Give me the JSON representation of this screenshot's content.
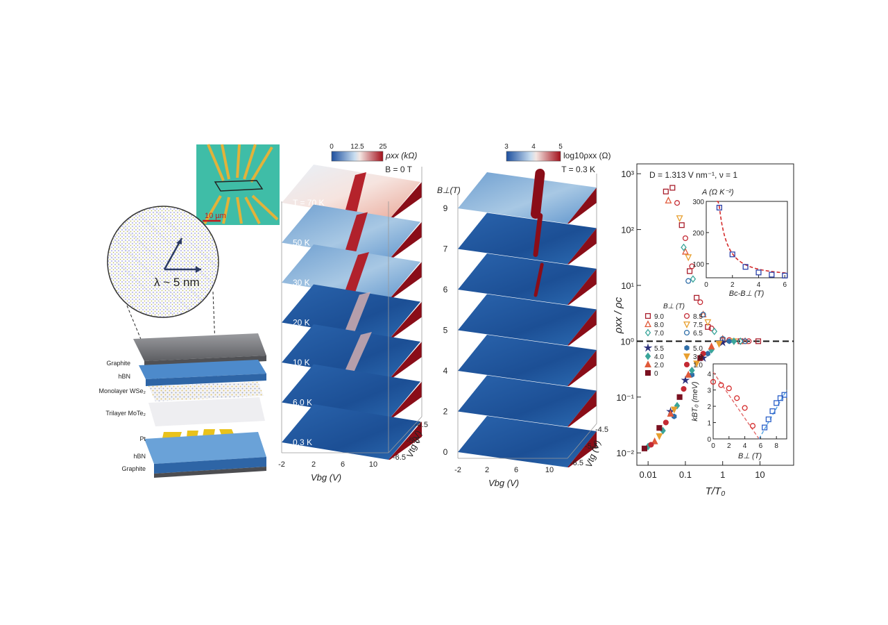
{
  "panel_a": {
    "scale_bar": "10 µm",
    "moire_label": "λ ~ 5 nm",
    "layers": [
      {
        "name": "Graphite",
        "color": "#6e6f72"
      },
      {
        "name": "hBN",
        "color": "#4a86c4"
      },
      {
        "name": "Monolayer WSe₂",
        "color": "#7a6fb8"
      },
      {
        "name": "Trilayer MoTe₂",
        "color": "#c7c7c7"
      },
      {
        "name": "Pt",
        "color": "#e8c21f"
      },
      {
        "name": "hBN",
        "color": "#4a86c4"
      },
      {
        "name": "Graphite",
        "color": "#6e6f72"
      }
    ]
  },
  "panel_b": {
    "colorbar_label": "ρxx (kΩ)",
    "colorbar_ticks": [
      "0",
      "12.5",
      "25"
    ],
    "condition": "B = 0 T",
    "slices": [
      "T = 70 K",
      "50 K",
      "30 K",
      "20 K",
      "10 K",
      "6.0 K",
      "0.3 K"
    ],
    "x_axis_label": "Vbg (V)",
    "x_ticks": [
      "-2",
      "2",
      "6",
      "10"
    ],
    "y_axis_label": "Vtg (V)",
    "y_ticks": [
      "-4.5",
      "-5.5",
      "-6.5"
    ]
  },
  "panel_c": {
    "colorbar_label": "log10ρxx (Ω)",
    "colorbar_ticks": [
      "3",
      "4",
      "5"
    ],
    "condition": "T = 0.3 K",
    "z_axis_label": "B⊥(T)",
    "z_ticks": [
      "9",
      "7",
      "6",
      "5",
      "4",
      "2",
      "0"
    ],
    "x_axis_label": "Vbg (V)",
    "x_ticks": [
      "-2",
      "2",
      "6",
      "10"
    ],
    "y_axis_label": "Vtg (V)",
    "y_ticks": [
      "-4.5",
      "-5.5",
      "-6.5"
    ]
  },
  "chart_data": [
    {
      "type": "scatter",
      "title": "D = 1.313 V nm⁻¹,  ν = 1",
      "xlabel": "T/T₀",
      "ylabel": "ρxx / ρc",
      "xscale": "log",
      "yscale": "log",
      "xlim": [
        0.005,
        80
      ],
      "ylim": [
        0.006,
        1500
      ],
      "x_ticks": [
        "0.01",
        "0.1",
        "1",
        "10"
      ],
      "y_ticks": [
        "10³",
        "10²",
        "10¹",
        "10⁰",
        "10⁻¹",
        "10⁻²"
      ],
      "reference_line": {
        "y": 1,
        "style": "dashed"
      },
      "legend_title": "B⊥ (T)",
      "series": [
        {
          "name": "9.0",
          "marker": "open-square",
          "color": "#a81c2a",
          "x": [
            0.03,
            0.045,
            0.08,
            0.13,
            0.2,
            0.4,
            1,
            3,
            9
          ],
          "y": [
            480,
            560,
            120,
            18,
            6,
            1.8,
            1.05,
            1.0,
            1.0
          ]
        },
        {
          "name": "8.5",
          "marker": "open-circle",
          "color": "#c42a34",
          "x": [
            0.06,
            0.1,
            0.15,
            0.25,
            0.5,
            1.5,
            5
          ],
          "y": [
            300,
            70,
            22,
            5,
            1.7,
            1.05,
            1.0
          ]
        },
        {
          "name": "8.0",
          "marker": "open-triangle",
          "color": "#e05a3a",
          "x": [
            0.035,
            0.1,
            0.3,
            1,
            4
          ],
          "y": [
            330,
            40,
            3,
            1.1,
            1.0
          ]
        },
        {
          "name": "7.5",
          "marker": "open-inverted-triangle",
          "color": "#e8a030",
          "x": [
            0.07,
            0.12,
            0.4,
            2
          ],
          "y": [
            160,
            32,
            2.2,
            1.0
          ]
        },
        {
          "name": "7.0",
          "marker": "open-diamond",
          "color": "#3aa59a",
          "x": [
            0.09,
            0.16,
            0.6,
            3
          ],
          "y": [
            48,
            13,
            1.5,
            1.0
          ]
        },
        {
          "name": "6.5",
          "marker": "open-circle",
          "color": "#2f6ea8",
          "x": [
            0.12,
            0.3,
            1,
            4
          ],
          "y": [
            12,
            3,
            1.1,
            1.0
          ]
        },
        {
          "name": "5.5",
          "marker": "star",
          "color": "#2a2f7a",
          "x": [
            0.04,
            0.1,
            0.3,
            1
          ],
          "y": [
            0.055,
            0.2,
            0.5,
            0.95
          ]
        },
        {
          "name": "5.0",
          "marker": "hexagon",
          "color": "#2f6ea8",
          "x": [
            0.05,
            0.15,
            0.4,
            1.5
          ],
          "y": [
            0.045,
            0.25,
            0.6,
            1.0
          ]
        },
        {
          "name": "4.0",
          "marker": "diamond",
          "color": "#3aa59a",
          "x": [
            0.01,
            0.025,
            0.06,
            0.15,
            0.5,
            2
          ],
          "y": [
            0.013,
            0.025,
            0.07,
            0.3,
            0.7,
            1.0
          ]
        },
        {
          "name": "3.0",
          "marker": "inverted-triangle",
          "color": "#e8a030",
          "x": [
            0.02,
            0.05,
            0.2,
            0.8
          ],
          "y": [
            0.02,
            0.06,
            0.4,
            0.9
          ]
        },
        {
          "name": "2.0",
          "marker": "triangle",
          "color": "#e05a3a",
          "x": [
            0.015,
            0.04,
            0.12,
            0.5
          ],
          "y": [
            0.016,
            0.05,
            0.25,
            0.8
          ]
        },
        {
          "name": "1.0",
          "marker": "circle",
          "color": "#c42a34",
          "x": [
            0.012,
            0.03,
            0.09,
            0.3
          ],
          "y": [
            0.014,
            0.035,
            0.14,
            0.6
          ]
        },
        {
          "name": "0",
          "marker": "square",
          "color": "#7a1020",
          "x": [
            0.008,
            0.02,
            0.07,
            0.25
          ],
          "y": [
            0.012,
            0.028,
            0.1,
            0.5
          ]
        }
      ]
    },
    {
      "type": "scatter",
      "title": "A (Ω K⁻²)",
      "xlabel": "Bc-B⊥ (T)",
      "ylabel": "",
      "xlim": [
        0,
        6.2
      ],
      "ylim": [
        55,
        300
      ],
      "x_ticks": [
        "0",
        "2",
        "4",
        "6"
      ],
      "y_ticks": [
        "100",
        "200",
        "300"
      ],
      "series": [
        {
          "name": "",
          "marker": "open-square",
          "color": "#2a3fa8",
          "x": [
            1,
            2,
            3,
            4,
            5,
            6
          ],
          "y": [
            280,
            130,
            90,
            72,
            65,
            62
          ]
        }
      ],
      "fit": {
        "style": "dashed",
        "color": "#d42a2a"
      }
    },
    {
      "type": "scatter",
      "title": "",
      "xlabel": "B⊥ (T)",
      "ylabel": "kBT₀ (meV)",
      "xlim": [
        0,
        9.3
      ],
      "ylim": [
        0,
        4.6
      ],
      "x_ticks": [
        "0",
        "2",
        "4",
        "6",
        "8"
      ],
      "y_ticks": [
        "0",
        "1",
        "2",
        "3",
        "4"
      ],
      "series": [
        {
          "name": "",
          "marker": "open-circle",
          "color": "#d42a2a",
          "x": [
            0,
            1,
            2,
            3,
            4,
            5
          ],
          "y": [
            3.5,
            3.3,
            3.1,
            2.5,
            1.9,
            0.8
          ]
        },
        {
          "name": "",
          "marker": "open-square",
          "color": "#2a5fc8",
          "x": [
            6.5,
            7,
            7.5,
            8,
            8.5,
            9
          ],
          "y": [
            0.7,
            1.2,
            1.7,
            2.2,
            2.5,
            2.7
          ]
        }
      ],
      "fits": [
        {
          "color": "#e26a6a",
          "style": "dashed"
        },
        {
          "color": "#4fa0e0",
          "style": "dashed"
        }
      ]
    }
  ]
}
